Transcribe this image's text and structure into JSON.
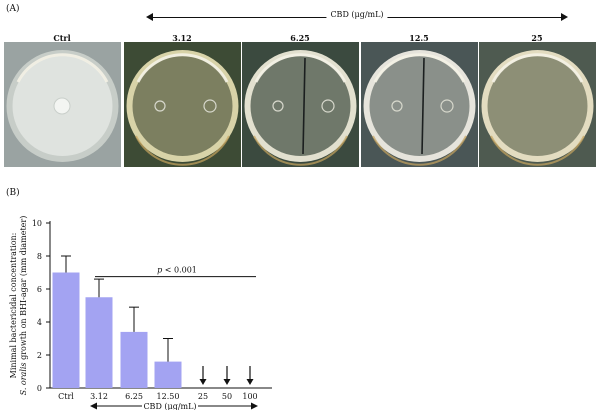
{
  "figure": {
    "panel_a_label": "(A)",
    "panel_b_label": "(B)",
    "top_axis_label": "CBD (μg/mL)",
    "plates": [
      {
        "label": "Ctrl",
        "background": "#9aa3a2",
        "agar": "#dfe3df",
        "rim": "#c7cdc8",
        "colonies": 1
      },
      {
        "label": "3.12",
        "background": "#3d4b35",
        "agar": "#7c7f60",
        "rim": "#d8d3a8",
        "colonies": 2
      },
      {
        "label": "6.25",
        "background": "#3b4a3f",
        "agar": "#6f786a",
        "rim": "#e2e0cf",
        "colonies": 2
      },
      {
        "label": "12.5",
        "background": "#4a5656",
        "agar": "#8a908a",
        "rim": "#e6e4dc",
        "colonies": 2
      },
      {
        "label": "25",
        "background": "#4e5a50",
        "agar": "#8d8f76",
        "rim": "#e3dcc0",
        "colonies": 0
      }
    ]
  },
  "chart_data": {
    "type": "bar",
    "categories": [
      "Ctrl",
      "3.12",
      "6.25",
      "12.50",
      "25",
      "50",
      "100"
    ],
    "values": [
      7.0,
      5.5,
      3.4,
      1.6,
      0,
      0,
      0
    ],
    "errors": [
      1.0,
      1.1,
      1.5,
      1.4,
      null,
      null,
      null
    ],
    "no_growth_arrows": [
      false,
      false,
      false,
      false,
      true,
      true,
      true
    ],
    "ylabel_line1": "Minimal bactericidal concentration:",
    "ylabel_line2_italic": "S. oralis",
    "ylabel_line2_rest": " growth on BHI-agar (mm diameter)",
    "xlabel": "CBD (μg/mL)",
    "ylim": [
      0,
      10
    ],
    "yticks": [
      0,
      2,
      4,
      6,
      8,
      10
    ],
    "annotation_italic": "p",
    "annotation_rest": " < 0.001",
    "bar_color": "#a3a3f2"
  }
}
